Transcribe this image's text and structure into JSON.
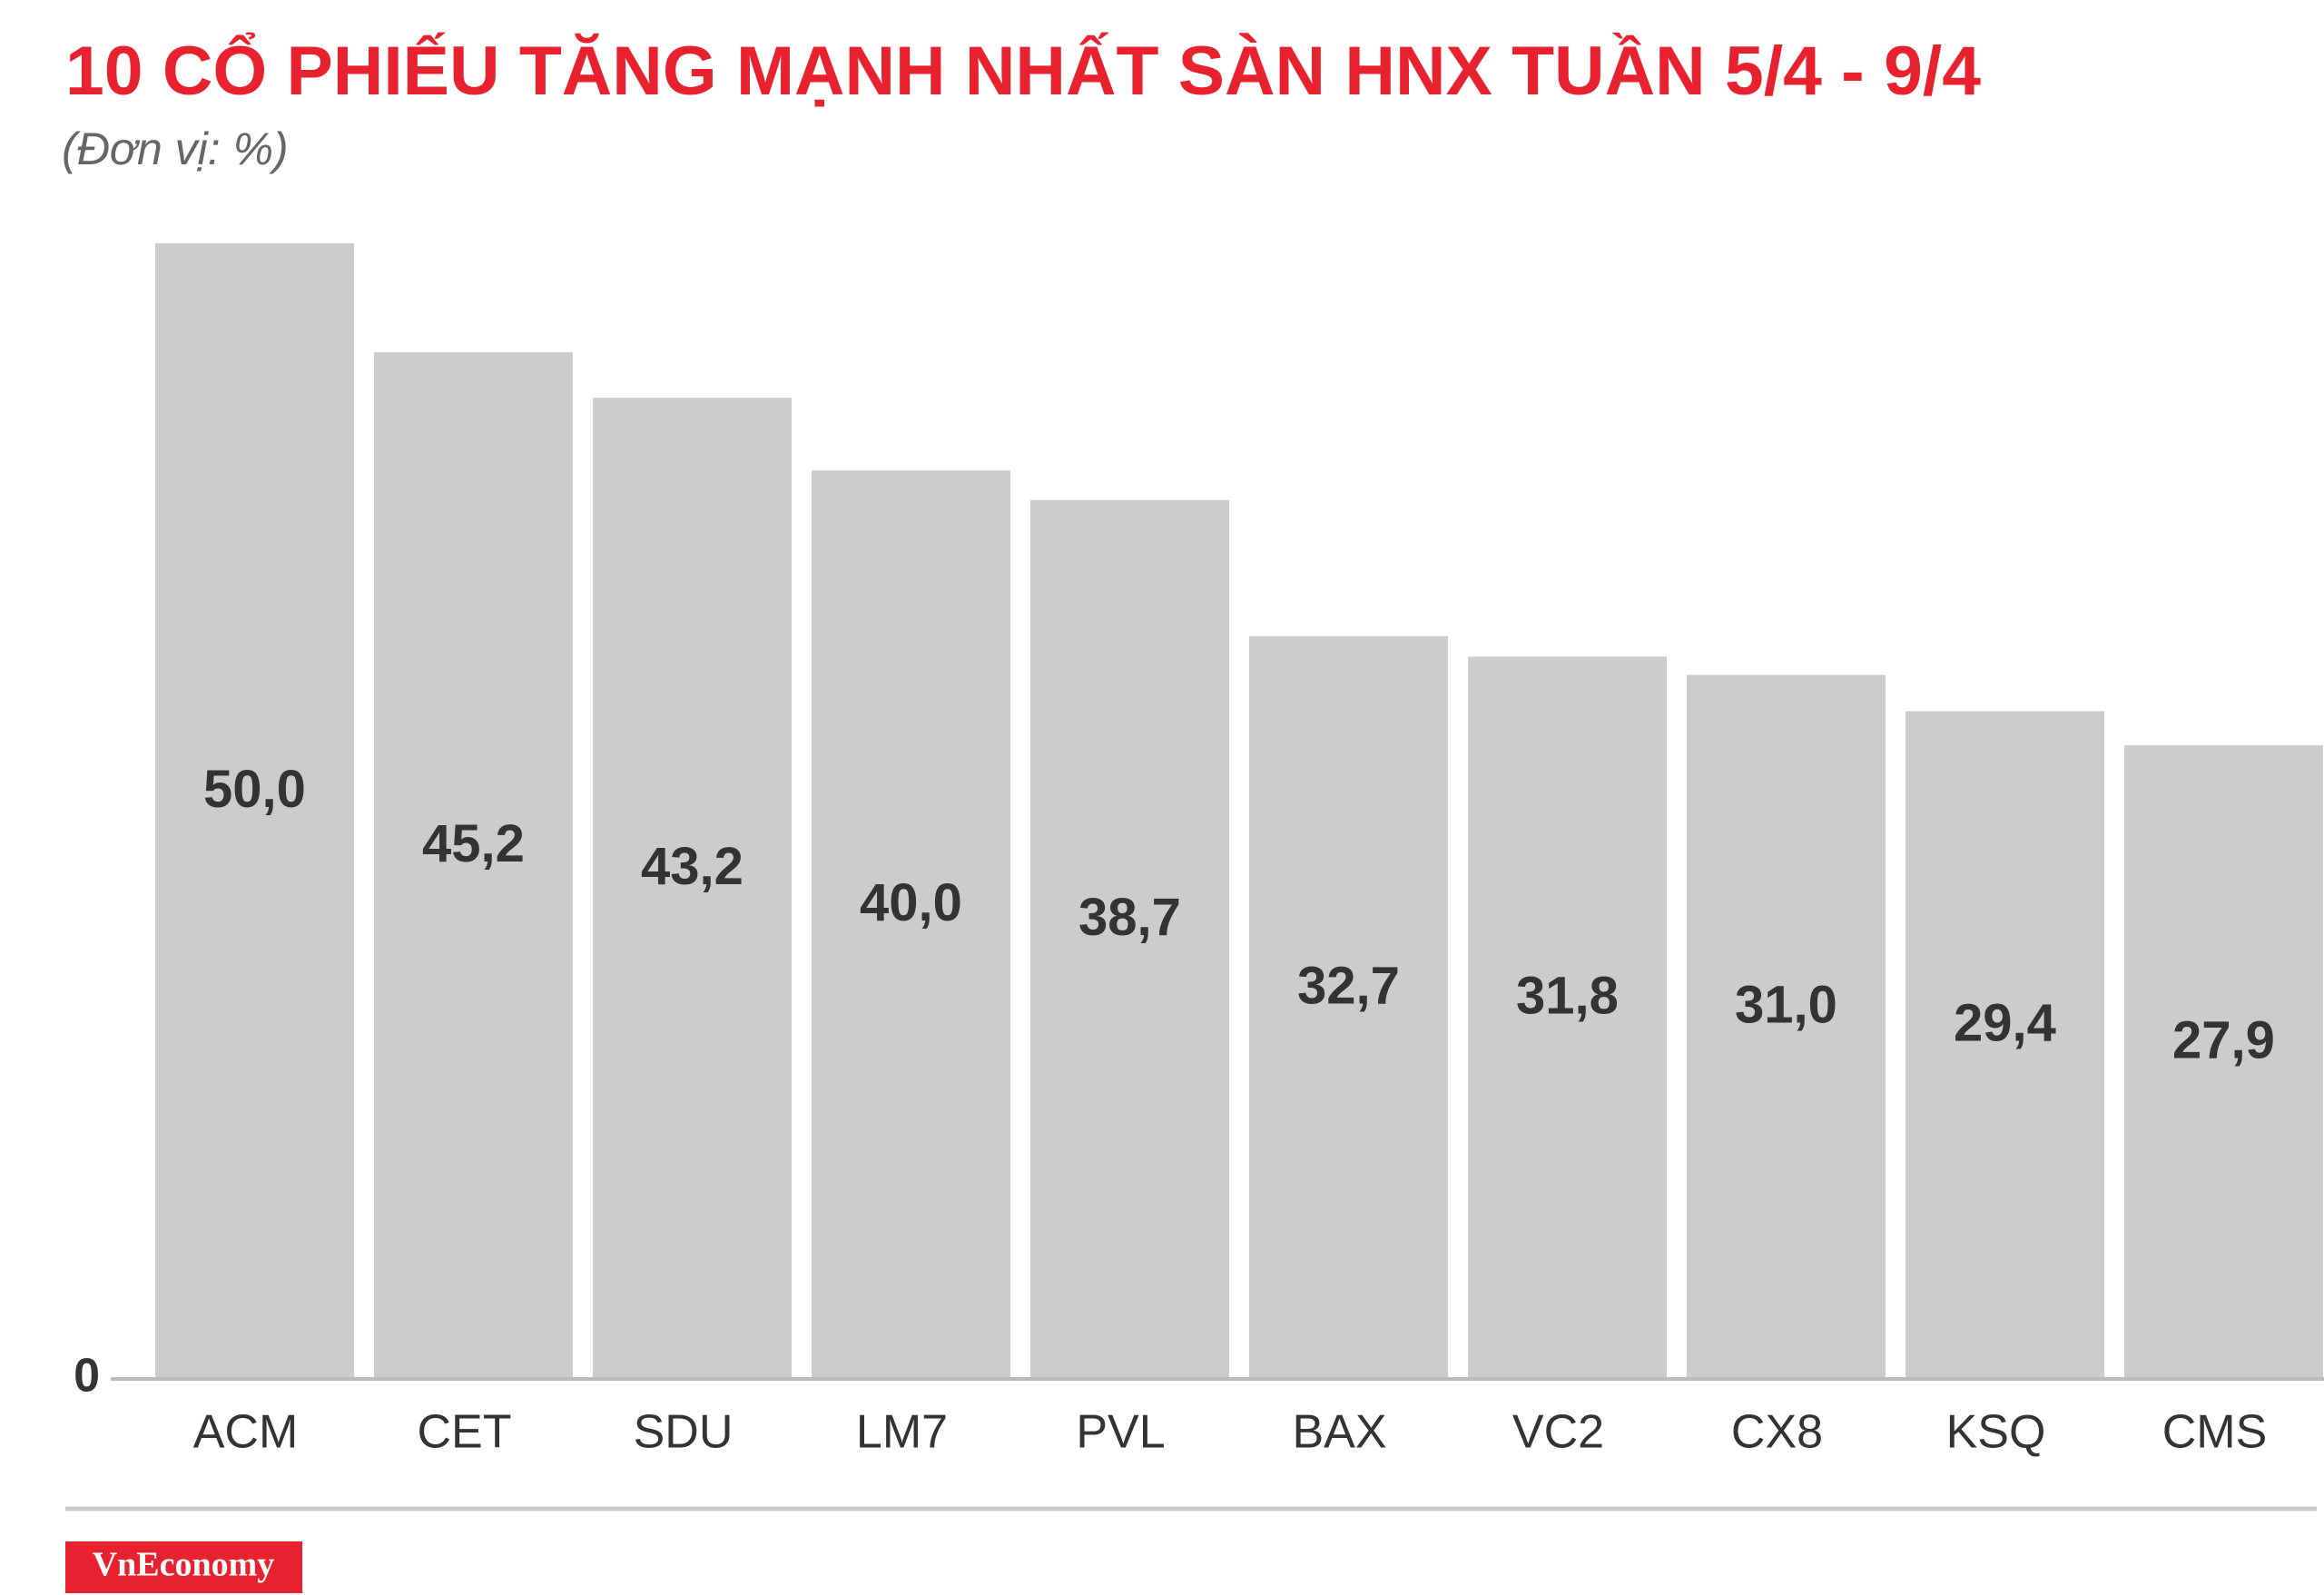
{
  "chart_data": {
    "type": "bar",
    "title": "10 CỔ PHIẾU TĂNG MẠNH NHẤT SÀN HNX TUẦN 5/4 - 9/4",
    "subtitle": "(Đơn vị: %)",
    "categories": [
      "ACM",
      "CET",
      "SDU",
      "LM7",
      "PVL",
      "BAX",
      "VC2",
      "CX8",
      "KSQ",
      "CMS"
    ],
    "values": [
      50.0,
      45.2,
      43.2,
      40.0,
      38.7,
      32.7,
      31.8,
      31.0,
      29.4,
      27.9
    ],
    "value_labels": [
      "50,0",
      "45,2",
      "43,2",
      "40,0",
      "38,7",
      "32,7",
      "31,8",
      "31,0",
      "29,4",
      "27,9"
    ],
    "color": "#cccccc",
    "ylim": [
      0,
      50
    ],
    "yticks": [
      0
    ],
    "brand": "VnEconomy"
  }
}
